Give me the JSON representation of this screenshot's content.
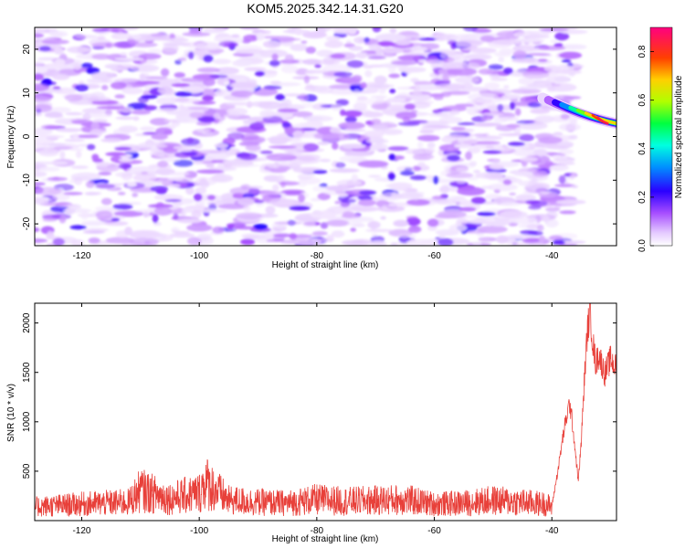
{
  "title": "KOM5.2025.342.14.31.G20",
  "chart_data": [
    {
      "type": "heatmap",
      "xlabel": "Height of straight line (km)",
      "ylabel": "Frequency (Hz)",
      "xlim": [
        -128,
        -29
      ],
      "ylim": [
        -25,
        25
      ],
      "xticks": [
        -120,
        -100,
        -80,
        -60,
        -40
      ],
      "yticks": [
        -20,
        -10,
        0,
        10,
        20
      ],
      "colorbar": {
        "label": "Normalized spectral amplitude",
        "range": [
          0,
          0.9
        ],
        "ticks": [
          "0.0",
          "0.2",
          "0.4",
          "0.6",
          "0.8"
        ]
      },
      "features": [
        {
          "desc": "strong coherent signal",
          "x_start": -42,
          "x_end": -29,
          "freq_start": 9,
          "freq_end": 3,
          "peak_amplitude": 0.85
        },
        {
          "desc": "background noise patches",
          "x_range": [
            -128,
            -42
          ],
          "freq_range": [
            -25,
            25
          ],
          "amplitude_range": [
            0.0,
            0.2
          ]
        }
      ]
    },
    {
      "type": "line",
      "xlabel": "Height of straight line (km)",
      "ylabel": "SNR (10 * v/v)",
      "xlim": [
        -128,
        -29
      ],
      "ylim": [
        0,
        2200
      ],
      "xticks": [
        -120,
        -100,
        -80,
        -60,
        -40
      ],
      "yticks": [
        500,
        1000,
        1500,
        2000
      ],
      "color": "#e8403a",
      "series": [
        {
          "name": "SNR",
          "x": [
            -128,
            -120,
            -112,
            -110,
            -105,
            -100,
            -99,
            -95,
            -90,
            -85,
            -80,
            -75,
            -70,
            -65,
            -60,
            -55,
            -50,
            -45,
            -41,
            -40,
            -39,
            -38,
            -37,
            -36.5,
            -36,
            -35.5,
            -35,
            -34.5,
            -34,
            -33.5,
            -33,
            -32.5,
            -32,
            -31,
            -30,
            -29
          ],
          "y": [
            150,
            180,
            200,
            330,
            240,
            300,
            420,
            220,
            200,
            190,
            230,
            210,
            220,
            230,
            180,
            190,
            220,
            200,
            180,
            150,
            500,
            900,
            1200,
            1000,
            700,
            400,
            800,
            1400,
            1900,
            2150,
            1800,
            1600,
            1700,
            1500,
            1650,
            1550
          ]
        }
      ]
    }
  ]
}
